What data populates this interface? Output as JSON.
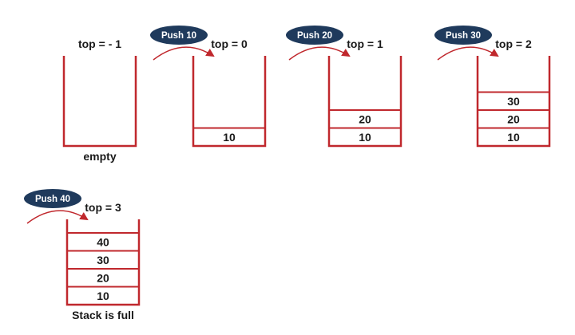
{
  "colors": {
    "stack_outline": "#c0282d",
    "arrow": "#c0282d",
    "pill_fill": "#1f3a5c",
    "pill_text": "#ffffff",
    "text": "#1a1a1a"
  },
  "stages": [
    {
      "top_label": "top = - 1",
      "push_label": "",
      "items": [],
      "caption": "empty"
    },
    {
      "top_label": "top = 0",
      "push_label": "Push 10",
      "items": [
        "10"
      ],
      "caption": ""
    },
    {
      "top_label": "top = 1",
      "push_label": "Push 20",
      "items": [
        "10",
        "20"
      ],
      "caption": ""
    },
    {
      "top_label": "top = 2",
      "push_label": "Push 30",
      "items": [
        "10",
        "20",
        "30"
      ],
      "caption": ""
    },
    {
      "top_label": "top = 3",
      "push_label": "Push 40",
      "items": [
        "10",
        "20",
        "30",
        "40"
      ],
      "caption": "Stack is full"
    }
  ]
}
